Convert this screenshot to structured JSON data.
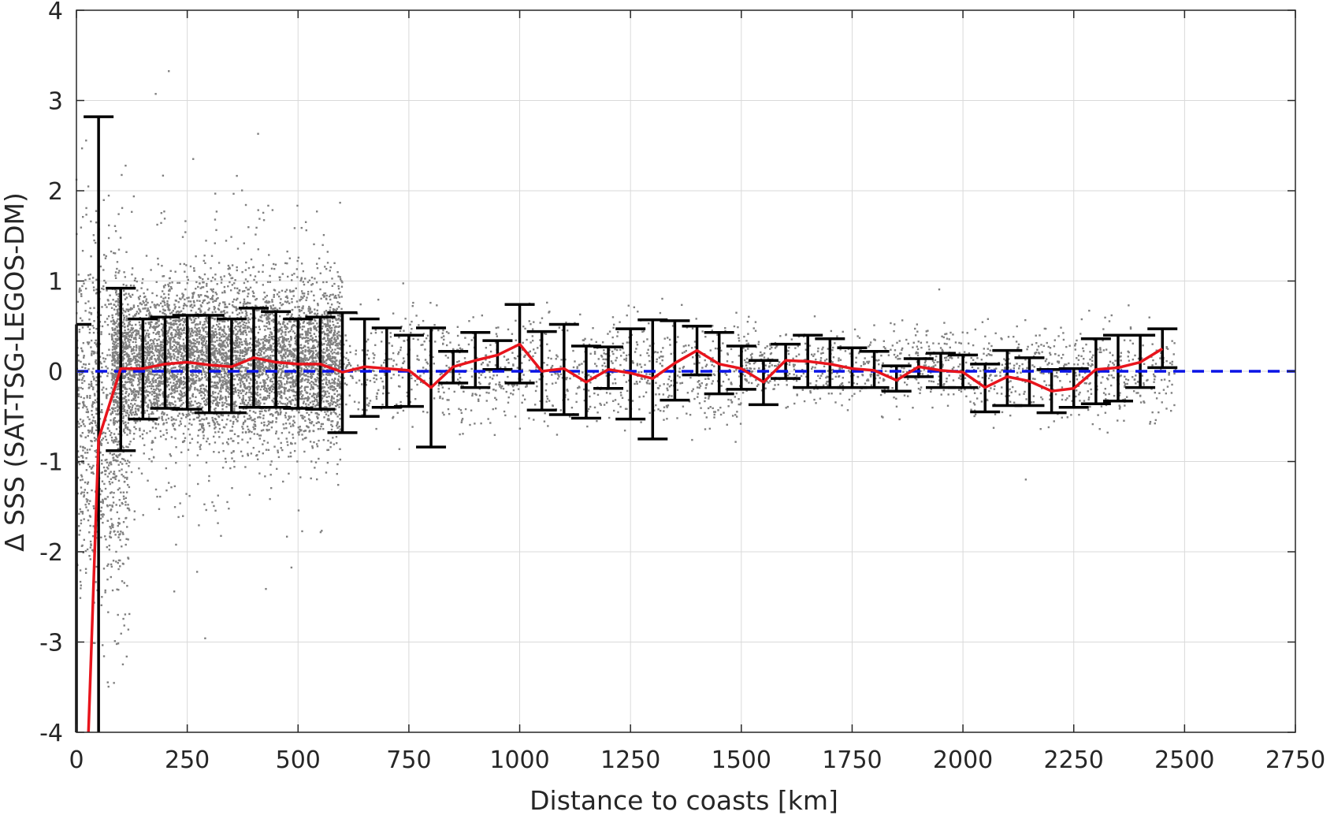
{
  "chart_data": {
    "type": "scatter",
    "xlabel": "Distance to coasts [km]",
    "ylabel": "Δ SSS (SAT-TSG-LEGOS-DM)",
    "xlim": [
      0,
      2750
    ],
    "ylim": [
      -4,
      4
    ],
    "x_ticks": [
      0,
      250,
      500,
      750,
      1000,
      1250,
      1500,
      1750,
      2000,
      2250,
      2500,
      2750
    ],
    "y_ticks": [
      -4,
      -3,
      -2,
      -1,
      0,
      1,
      2,
      3,
      4
    ],
    "grid": true,
    "colors": {
      "scatter": "#808080",
      "mean_line": "#e8141c",
      "error_bars": "#000000",
      "zero_line": "#0a14e6",
      "grid": "#d9d9d9",
      "axes": "#262626"
    },
    "reference_line": {
      "y": 0,
      "style": "dashed"
    },
    "series": [
      {
        "type": "line",
        "x": [
          25,
          50,
          100,
          150,
          200,
          250,
          300,
          350,
          400,
          450,
          500,
          550,
          600,
          650,
          700,
          750,
          800,
          850,
          900,
          950,
          1000,
          1050,
          1100,
          1150,
          1200,
          1250,
          1300,
          1350,
          1400,
          1450,
          1500,
          1550,
          1600,
          1650,
          1700,
          1750,
          1800,
          1850,
          1900,
          1950,
          2000,
          2050,
          2100,
          2150,
          2200,
          2250,
          2300,
          2350,
          2400,
          2450
        ],
        "y": [
          -4.3,
          -0.75,
          0.03,
          0.03,
          0.08,
          0.1,
          0.07,
          0.05,
          0.15,
          0.1,
          0.08,
          0.08,
          -0.01,
          0.05,
          0.03,
          0.01,
          -0.18,
          0.05,
          0.12,
          0.18,
          0.3,
          0.0,
          0.03,
          -0.12,
          0.02,
          -0.02,
          -0.08,
          0.09,
          0.23,
          0.08,
          0.03,
          -0.12,
          0.12,
          0.11,
          0.08,
          0.03,
          0.01,
          -0.1,
          0.05,
          0.01,
          -0.01,
          -0.18,
          -0.06,
          -0.11,
          -0.22,
          -0.19,
          0.02,
          0.04,
          0.1,
          0.25
        ]
      },
      {
        "type": "errorbar",
        "x": [
          0,
          50,
          100,
          150,
          200,
          250,
          300,
          350,
          400,
          450,
          500,
          550,
          600,
          650,
          700,
          750,
          800,
          850,
          900,
          950,
          1000,
          1050,
          1100,
          1150,
          1200,
          1250,
          1300,
          1350,
          1400,
          1450,
          1500,
          1550,
          1600,
          1650,
          1700,
          1750,
          1800,
          1850,
          1900,
          1950,
          2000,
          2050,
          2100,
          2150,
          2200,
          2250,
          2300,
          2350,
          2400,
          2450
        ],
        "low": [
          -4.0,
          -4.0,
          -0.88,
          -0.53,
          -0.41,
          -0.42,
          -0.46,
          -0.46,
          -0.4,
          -0.4,
          -0.41,
          -0.42,
          -0.68,
          -0.5,
          -0.4,
          -0.39,
          -0.84,
          -0.13,
          -0.18,
          0.02,
          -0.13,
          -0.43,
          -0.48,
          -0.52,
          -0.19,
          -0.53,
          -0.75,
          -0.32,
          -0.04,
          -0.25,
          -0.2,
          -0.37,
          -0.08,
          -0.18,
          -0.18,
          -0.18,
          -0.18,
          -0.22,
          -0.06,
          -0.18,
          -0.18,
          -0.45,
          -0.38,
          -0.38,
          -0.46,
          -0.4,
          -0.36,
          -0.33,
          -0.18,
          0.04
        ],
        "high": [
          0.52,
          2.82,
          0.92,
          0.58,
          0.6,
          0.62,
          0.62,
          0.58,
          0.7,
          0.66,
          0.58,
          0.6,
          0.65,
          0.58,
          0.48,
          0.4,
          0.48,
          0.22,
          0.43,
          0.34,
          0.74,
          0.44,
          0.52,
          0.28,
          0.27,
          0.47,
          0.57,
          0.56,
          0.5,
          0.43,
          0.28,
          0.12,
          0.3,
          0.4,
          0.36,
          0.26,
          0.22,
          0.06,
          0.14,
          0.2,
          0.18,
          0.08,
          0.23,
          0.15,
          0.02,
          0.03,
          0.36,
          0.4,
          0.4,
          0.47
        ]
      }
    ],
    "scatter_clusters": [
      {
        "x_range": [
          0,
          120
        ],
        "mean": -0.6,
        "sd": 1.0,
        "n": 900
      },
      {
        "x_range": [
          80,
          600
        ],
        "mean": 0.1,
        "sd": 0.42,
        "n": 5200
      },
      {
        "x_range": [
          120,
          600
        ],
        "mean": 0.1,
        "sd": 0.9,
        "n": 500
      },
      {
        "x_range": [
          600,
          1000
        ],
        "mean": 0.02,
        "sd": 0.3,
        "n": 450
      },
      {
        "x_range": [
          1000,
          1500
        ],
        "mean": 0.0,
        "sd": 0.28,
        "n": 600
      },
      {
        "x_range": [
          1500,
          2000
        ],
        "mean": 0.05,
        "sd": 0.2,
        "n": 600
      },
      {
        "x_range": [
          2000,
          2480
        ],
        "mean": 0.0,
        "sd": 0.25,
        "n": 550
      }
    ]
  }
}
